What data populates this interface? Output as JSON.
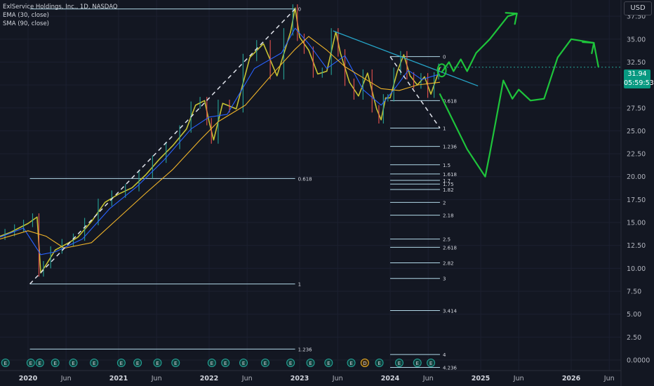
{
  "header": {
    "title": "ExlService Holdings, Inc., 1D, NASDAQ",
    "indicators": [
      "EMA (30, close)",
      "SMA (90, close)"
    ],
    "currency": "USD"
  },
  "price_badge": {
    "price": "31.94",
    "countdown": "05:59:53"
  },
  "colors": {
    "background": "#131722",
    "candle_up": "#26a69a",
    "candle_down": "#ef5350",
    "price_line": "#c6c233",
    "ema": "#2962ff",
    "sma": "#f0b429",
    "fib_lines": "#b2d8e8",
    "trendline": "#26a6c9",
    "drawing": "#1ec43b",
    "badge": "#089981"
  },
  "chart_data": {
    "type": "line",
    "title": "ExlService Holdings, Inc., 1D, NASDAQ",
    "xlabel": "",
    "ylabel": "",
    "ylim": [
      0,
      39
    ],
    "y_ticks": [
      "0.0000",
      "2.50",
      "5.00",
      "7.50",
      "10.00",
      "12.50",
      "15.00",
      "17.50",
      "20.00",
      "22.50",
      "25.00",
      "27.50",
      "30.00",
      "32.50",
      "35.00",
      "37.50"
    ],
    "y_tick_values": [
      0,
      2.5,
      5,
      7.5,
      10,
      12.5,
      15,
      17.5,
      20,
      22.5,
      25,
      27.5,
      30,
      32.5,
      35,
      37.5
    ],
    "x_ticks": [
      "2020",
      "Jun",
      "2021",
      "Jun",
      "2022",
      "Jun",
      "2023",
      "Jun",
      "2024",
      "Jun",
      "2025",
      "Jun",
      "2026",
      "Jun"
    ],
    "x_tick_values": [
      2020.0,
      2020.42,
      2021.0,
      2021.42,
      2022.0,
      2022.42,
      2023.0,
      2023.42,
      2024.0,
      2024.42,
      2025.0,
      2025.42,
      2026.0,
      2026.42
    ],
    "x_range": [
      2019.69,
      2026.55
    ],
    "series": [
      {
        "name": "ExlService Holdings, Inc.",
        "x": [
          2019.69,
          2019.8,
          2019.9,
          2020.0,
          2020.1,
          2020.14,
          2020.2,
          2020.3,
          2020.45,
          2020.55,
          2020.7,
          2020.85,
          2021.0,
          2021.15,
          2021.3,
          2021.45,
          2021.6,
          2021.75,
          2021.85,
          2021.95,
          2022.0,
          2022.05,
          2022.15,
          2022.3,
          2022.45,
          2022.6,
          2022.75,
          2022.9,
          2022.95,
          2023.0,
          2023.1,
          2023.2,
          2023.3,
          2023.4,
          2023.45,
          2023.55,
          2023.65,
          2023.75,
          2023.85,
          2023.9,
          2023.95,
          2024.0,
          2024.08,
          2024.15,
          2024.22,
          2024.3,
          2024.38,
          2024.45,
          2024.52,
          2024.55
        ],
        "y": [
          13.5,
          13.9,
          14.4,
          14.9,
          15.6,
          9.5,
          10.4,
          12.0,
          12.8,
          13.4,
          15.1,
          17.2,
          18.1,
          18.8,
          20.2,
          21.9,
          23.4,
          25.2,
          27.8,
          28.3,
          26.0,
          24.0,
          28.0,
          27.4,
          33.0,
          34.5,
          31.0,
          35.8,
          38.4,
          35.2,
          33.8,
          31.2,
          31.5,
          35.8,
          33.5,
          30.3,
          28.8,
          31.3,
          27.4,
          26.2,
          28.6,
          28.6,
          31.5,
          33.3,
          31.0,
          30.0,
          30.9,
          29.0,
          31.0,
          31.94
        ]
      },
      {
        "name": "EMA (30, close)",
        "x": [
          2019.69,
          2019.95,
          2020.14,
          2020.3,
          2020.6,
          2020.9,
          2021.2,
          2021.5,
          2021.8,
          2022.0,
          2022.2,
          2022.5,
          2022.8,
          2022.95,
          2023.1,
          2023.3,
          2023.5,
          2023.7,
          2023.9,
          2024.05,
          2024.2,
          2024.35,
          2024.55
        ],
        "y": [
          13.4,
          14.4,
          11.5,
          11.8,
          13.2,
          16.5,
          18.9,
          21.8,
          25.2,
          26.5,
          26.8,
          31.8,
          33.5,
          36.2,
          34.5,
          31.8,
          33.2,
          29.5,
          27.8,
          29.6,
          31.6,
          30.6,
          31.2
        ]
      },
      {
        "name": "SMA (90, close)",
        "x": [
          2019.69,
          2020.0,
          2020.2,
          2020.4,
          2020.7,
          2021.0,
          2021.3,
          2021.6,
          2021.9,
          2022.1,
          2022.4,
          2022.7,
          2022.95,
          2023.1,
          2023.3,
          2023.5,
          2023.7,
          2023.9,
          2024.1,
          2024.3,
          2024.55
        ],
        "y": [
          13.2,
          14.1,
          13.5,
          12.2,
          12.8,
          15.5,
          18.2,
          20.8,
          24.0,
          26.0,
          27.8,
          31.2,
          33.9,
          35.3,
          33.8,
          32.0,
          30.8,
          29.6,
          29.4,
          30.0,
          30.3
        ]
      }
    ],
    "fibonacci_levels": [
      {
        "label": "0",
        "value": 38.3,
        "x_start": 2020.02,
        "x_end": 2022.95
      },
      {
        "label": "0.618",
        "value": 19.8,
        "x_start": 2020.02,
        "x_end": 2022.95
      },
      {
        "label": "1",
        "value": 8.3,
        "x_start": 2020.02,
        "x_end": 2022.95
      },
      {
        "label": "1.236",
        "value": 1.2,
        "x_start": 2020.02,
        "x_end": 2022.95
      }
    ],
    "fibonacci_extension_levels": [
      {
        "label": "0",
        "value": 33.1
      },
      {
        "label": "0.618",
        "value": 28.3
      },
      {
        "label": "1",
        "value": 25.3
      },
      {
        "label": "1.236",
        "value": 23.3
      },
      {
        "label": "1.5",
        "value": 21.3
      },
      {
        "label": "1.618",
        "value": 20.3
      },
      {
        "label": "1.7",
        "value": 19.6
      },
      {
        "label": "1.75",
        "value": 19.2
      },
      {
        "label": "1.82",
        "value": 18.6
      },
      {
        "label": "2",
        "value": 17.2
      },
      {
        "label": "2.18",
        "value": 15.8
      },
      {
        "label": "2.5",
        "value": 13.2
      },
      {
        "label": "2.618",
        "value": 12.3
      },
      {
        "label": "2.82",
        "value": 10.6
      },
      {
        "label": "3",
        "value": 8.9
      },
      {
        "label": "3.414",
        "value": 5.4
      },
      {
        "label": "4",
        "value": 0.6
      },
      {
        "label": "4.236",
        "value": -0.8
      }
    ],
    "fib_extension_x": [
      2024.0,
      2024.55
    ],
    "trendline": {
      "x": [
        2023.37,
        2024.97
      ],
      "y": [
        35.9,
        29.9
      ]
    },
    "dashed_lines": [
      {
        "x": [
          2020.02,
          2022.95
        ],
        "y": [
          8.3,
          38.3
        ]
      },
      {
        "x": [
          2024.0,
          2024.55
        ],
        "y": [
          33.1,
          25.3
        ]
      }
    ],
    "projection_paths": [
      {
        "x": [
          2024.57,
          2024.65,
          2024.7,
          2024.78,
          2024.85,
          2024.95,
          2025.1,
          2025.3,
          2025.4
        ],
        "y": [
          31.4,
          32.5,
          31.5,
          32.8,
          31.5,
          33.5,
          35.0,
          37.5,
          37.8
        ]
      },
      {
        "x": [
          2024.55,
          2024.7,
          2024.85,
          2025.05,
          2025.1,
          2025.25,
          2025.35,
          2025.42,
          2025.55,
          2025.7,
          2025.85,
          2026.0,
          2026.25,
          2026.3
        ],
        "y": [
          29.0,
          26.0,
          23.0,
          20.0,
          22.5,
          30.5,
          28.5,
          29.5,
          28.3,
          28.5,
          33.0,
          35.0,
          34.6,
          32.0
        ]
      }
    ],
    "projection_arrows": [
      {
        "x": 2025.4,
        "y": 37.8
      },
      {
        "x": 2026.25,
        "y": 34.6
      }
    ],
    "current_price_marker": {
      "x": 2024.57,
      "y": 31.6
    },
    "event_markers": {
      "x": [
        2019.75,
        2020.03,
        2020.13,
        2020.3,
        2020.5,
        2020.73,
        2021.03,
        2021.21,
        2021.43,
        2021.63,
        2022.03,
        2022.18,
        2022.38,
        2022.62,
        2022.9,
        2023.12,
        2023.32,
        2023.57,
        2023.88,
        2024.1,
        2024.3,
        2024.45
      ],
      "labels": [
        "E",
        "E",
        "E",
        "E",
        "E",
        "E",
        "E",
        "E",
        "E",
        "E",
        "E",
        "E",
        "E",
        "E",
        "E",
        "E",
        "E",
        "E",
        "E",
        "E",
        "E",
        "E"
      ]
    },
    "dividend_marker": {
      "x": 2023.72,
      "label": "D"
    },
    "grid": true,
    "legend": "top-left"
  }
}
